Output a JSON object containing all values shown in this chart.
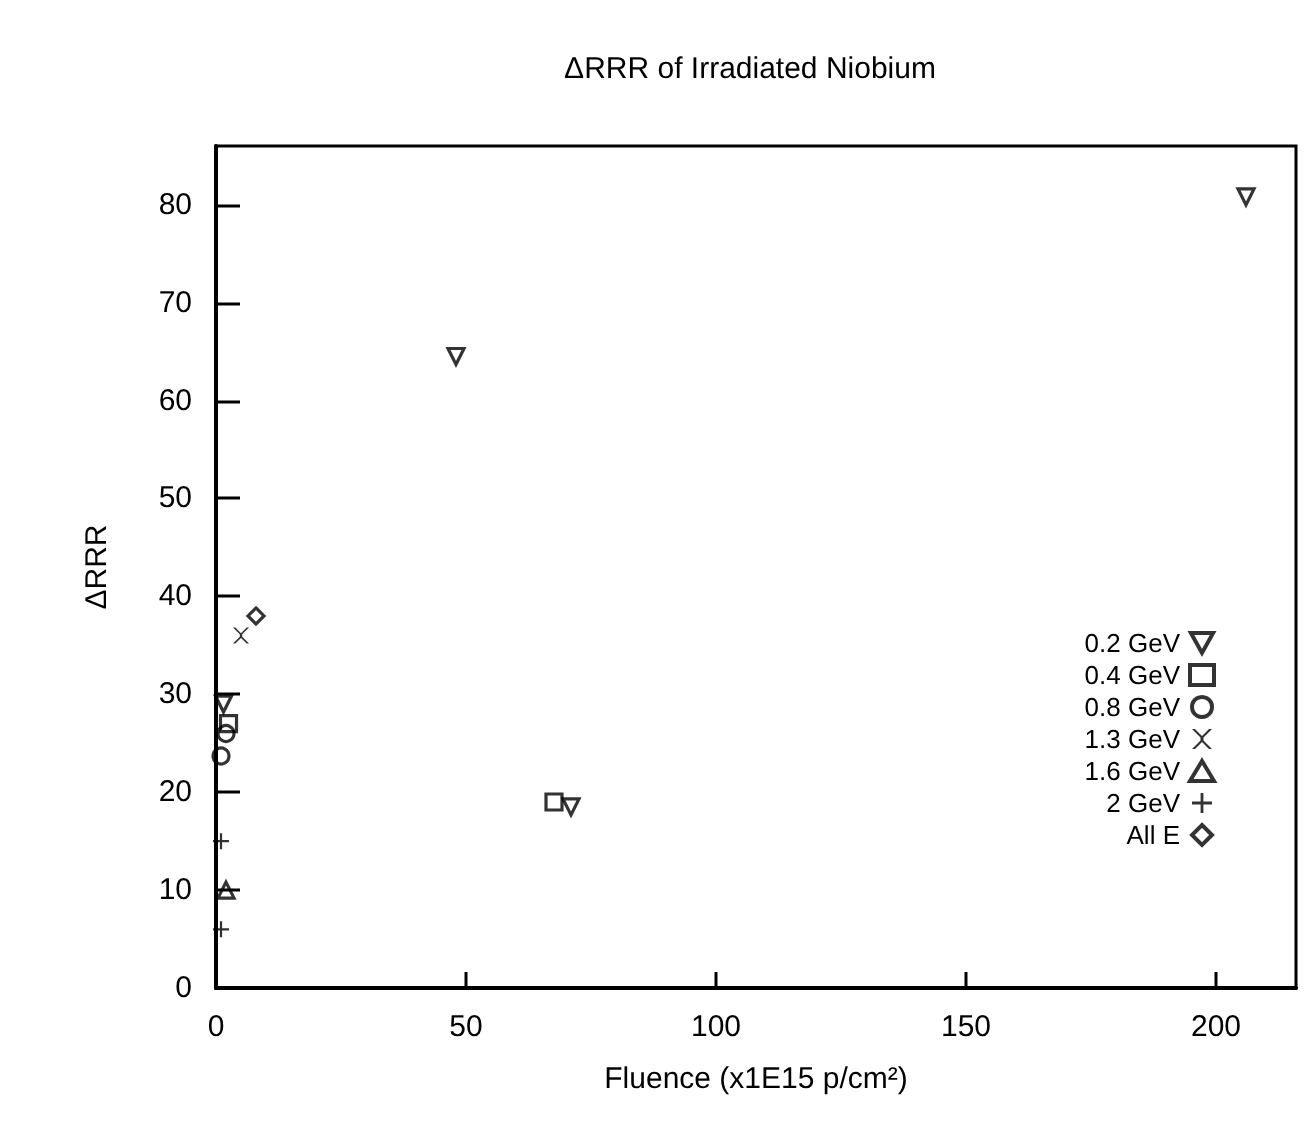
{
  "chart_data": {
    "type": "scatter",
    "title": "ΔRRR of Irradiated Niobium",
    "xlabel": "Fluence (x1E15 p/cm²)",
    "ylabel": "ΔRRR",
    "xlim": [
      0,
      216
    ],
    "xticks": [
      0,
      50,
      100,
      150,
      200
    ],
    "ylim": [
      0,
      86
    ],
    "yticks": [
      0,
      10,
      20,
      30,
      40,
      50,
      60,
      70,
      80
    ],
    "grid": false,
    "legend": "right",
    "series": [
      {
        "name": "0.2 GeV",
        "color": "#000000",
        "marker": "triangle-down",
        "x": [
          1.5,
          48,
          206,
          71
        ],
        "values": [
          29,
          64.5,
          80.8,
          18.5
        ]
      },
      {
        "name": "0.4 GeV",
        "color": "#000000",
        "marker": "square",
        "x": [
          2.5,
          67.6
        ],
        "values": [
          27,
          19
        ]
      },
      {
        "name": "0.8 GeV",
        "color": "#000000",
        "marker": "circle",
        "x": [
          1,
          2
        ],
        "values": [
          23.7,
          26
        ]
      },
      {
        "name": "1.3 GeV",
        "color": "#000000",
        "marker": "cross",
        "x": [
          5
        ],
        "values": [
          36
        ]
      },
      {
        "name": "1.6 GeV",
        "color": "#000000",
        "marker": "triangle",
        "x": [
          2
        ],
        "values": [
          10
        ]
      },
      {
        "name": "2 GeV",
        "color": "#000000",
        "marker": "plus",
        "x": [
          1,
          1
        ],
        "values": [
          15,
          6
        ]
      },
      {
        "name": "All E",
        "color": "#000000",
        "marker": "diamond",
        "x": [
          8
        ],
        "values": [
          38
        ]
      }
    ]
  }
}
